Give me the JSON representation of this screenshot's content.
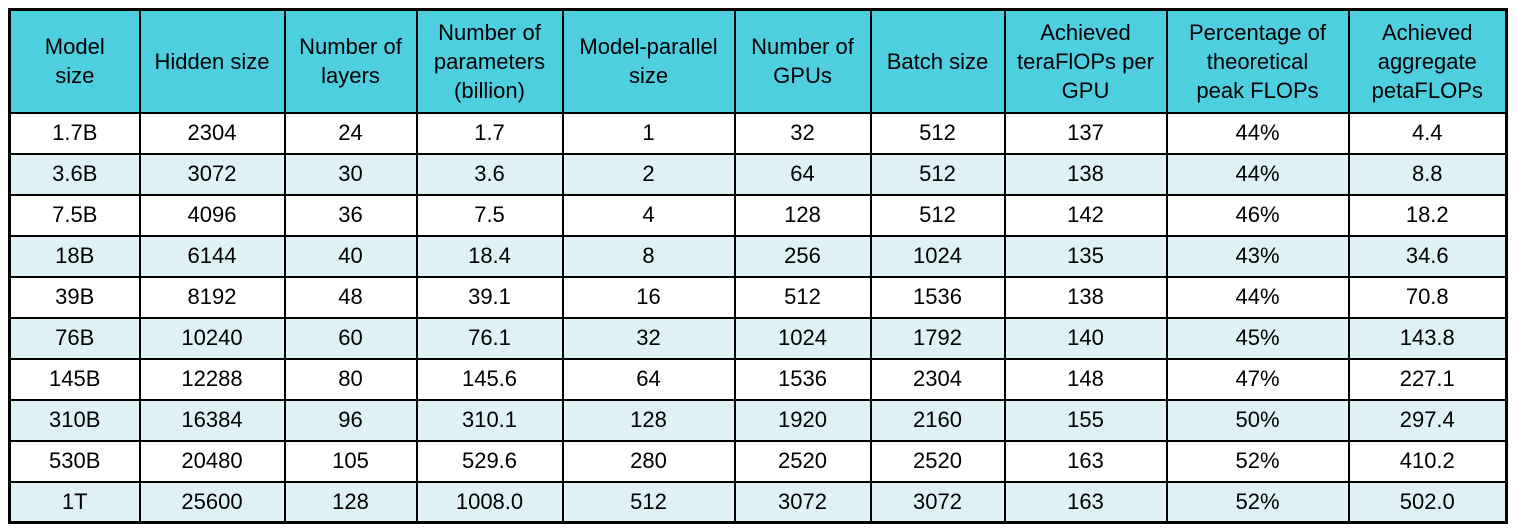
{
  "colors": {
    "header_bg": "#4ecfe0",
    "row_bg": "#ffffff",
    "row_alt_bg": "#def2f6",
    "border": "#000000",
    "text": "#000000"
  },
  "chart_data": {
    "type": "table",
    "title": "",
    "columns": [
      "Model\nsize",
      "Hidden size",
      "Number of\nlayers",
      "Number of\nparameters\n(billion)",
      "Model-parallel\nsize",
      "Number of\nGPUs",
      "Batch size",
      "Achieved\nteraFlOPs per\nGPU",
      "Percentage of\ntheoretical\npeak FLOPs",
      "Achieved\naggregate\npetaFLOPs"
    ],
    "rows": [
      [
        "1.7B",
        "2304",
        "24",
        "1.7",
        "1",
        "32",
        "512",
        "137",
        "44%",
        "4.4"
      ],
      [
        "3.6B",
        "3072",
        "30",
        "3.6",
        "2",
        "64",
        "512",
        "138",
        "44%",
        "8.8"
      ],
      [
        "7.5B",
        "4096",
        "36",
        "7.5",
        "4",
        "128",
        "512",
        "142",
        "46%",
        "18.2"
      ],
      [
        "18B",
        "6144",
        "40",
        "18.4",
        "8",
        "256",
        "1024",
        "135",
        "43%",
        "34.6"
      ],
      [
        "39B",
        "8192",
        "48",
        "39.1",
        "16",
        "512",
        "1536",
        "138",
        "44%",
        "70.8"
      ],
      [
        "76B",
        "10240",
        "60",
        "76.1",
        "32",
        "1024",
        "1792",
        "140",
        "45%",
        "143.8"
      ],
      [
        "145B",
        "12288",
        "80",
        "145.6",
        "64",
        "1536",
        "2304",
        "148",
        "47%",
        "227.1"
      ],
      [
        "310B",
        "16384",
        "96",
        "310.1",
        "128",
        "1920",
        "2160",
        "155",
        "50%",
        "297.4"
      ],
      [
        "530B",
        "20480",
        "105",
        "529.6",
        "280",
        "2520",
        "2520",
        "163",
        "52%",
        "410.2"
      ],
      [
        "1T",
        "25600",
        "128",
        "1008.0",
        "512",
        "3072",
        "3072",
        "163",
        "52%",
        "502.0"
      ]
    ],
    "layout": {
      "striping": "alternate rows light cyan starting at second data row",
      "grid": "all cell borders black",
      "header_position": "top"
    }
  }
}
